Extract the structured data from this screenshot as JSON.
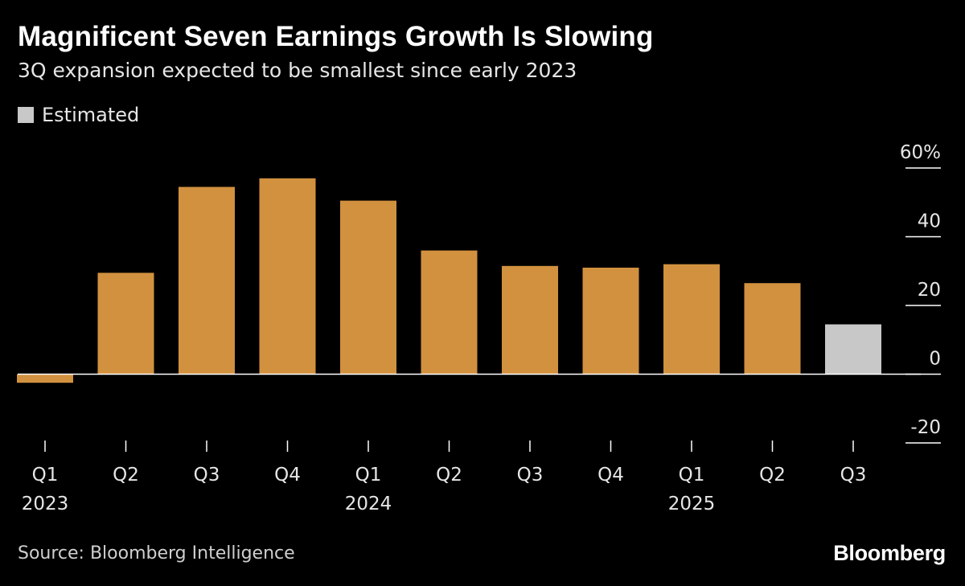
{
  "header": {
    "title": "Magnificent Seven Earnings Growth Is Slowing",
    "subtitle": "3Q expansion expected to be smallest since early 2023"
  },
  "legend": {
    "label": "Estimated",
    "color": "#c8c8c8"
  },
  "footer": {
    "source": "Source: Bloomberg Intelligence",
    "brand": "Bloomberg"
  },
  "colors": {
    "actual": "#d1913f",
    "estimated": "#c8c8c8",
    "background": "#000000",
    "axis": "#ffffff"
  },
  "chart_data": {
    "type": "bar",
    "categories": [
      "Q1",
      "Q2",
      "Q3",
      "Q4",
      "Q1",
      "Q2",
      "Q3",
      "Q4",
      "Q1",
      "Q2",
      "Q3"
    ],
    "year_labels": [
      "2023",
      "",
      "",
      "",
      "2024",
      "",
      "",
      "",
      "2025",
      "",
      ""
    ],
    "values": [
      -2.5,
      29.5,
      54.5,
      57,
      50.5,
      36,
      31.5,
      31,
      32,
      26.5,
      14.5
    ],
    "estimated": [
      false,
      false,
      false,
      false,
      false,
      false,
      false,
      false,
      false,
      false,
      true
    ],
    "ylim": [
      -20,
      60
    ],
    "yticks": [
      60,
      40,
      20,
      0,
      -20
    ],
    "ytick_labels": [
      "60%",
      "40",
      "20",
      "0",
      "-20"
    ],
    "y_axis_position": "right",
    "grid": false
  }
}
